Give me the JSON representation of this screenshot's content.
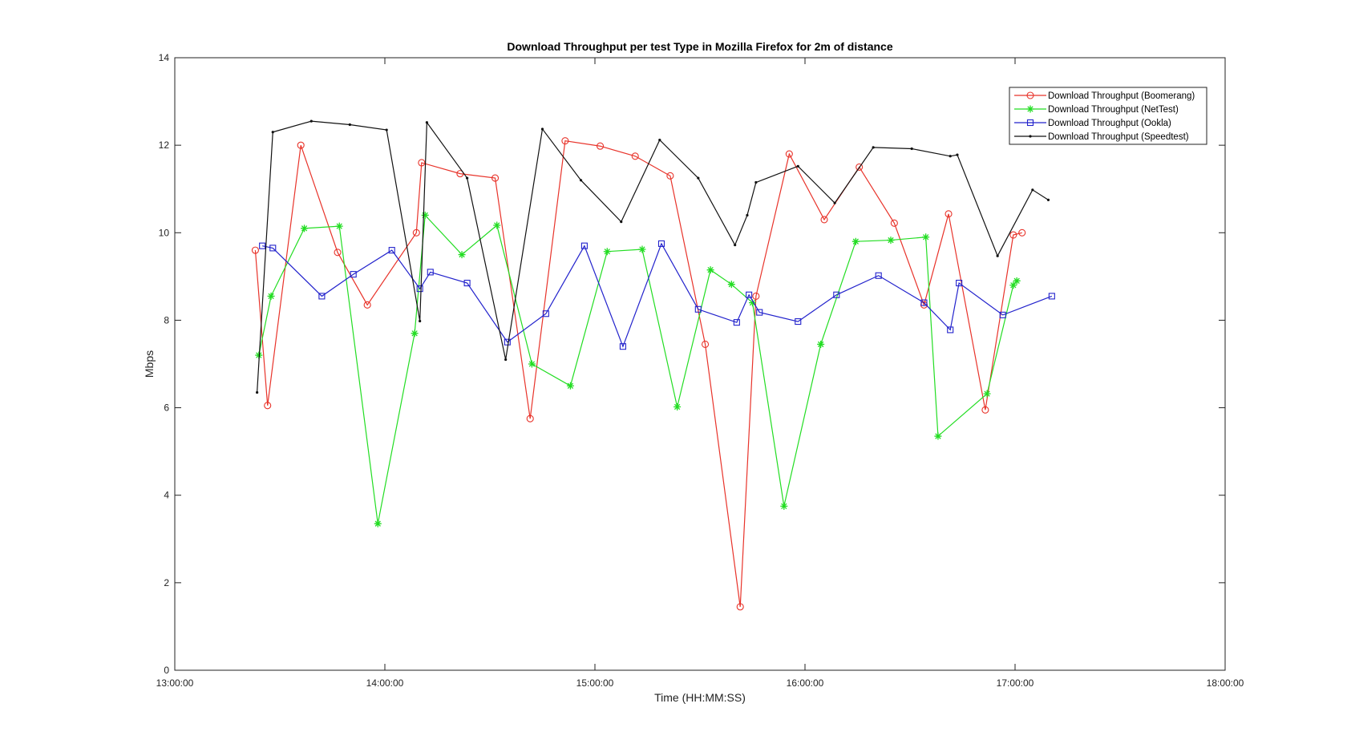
{
  "chart_data": {
    "type": "line",
    "title": "Download Throughput per test Type in Mozilla Firefox for 2m of distance",
    "xlabel": "Time (HH:MM:SS)",
    "ylabel": "Mbps",
    "xlim": [
      "13:00:00",
      "18:00:00"
    ],
    "ylim": [
      0,
      14
    ],
    "xticks": [
      "13:00:00",
      "14:00:00",
      "15:00:00",
      "16:00:00",
      "17:00:00",
      "18:00:00"
    ],
    "yticks": [
      "0",
      "2",
      "4",
      "6",
      "8",
      "10",
      "12",
      "14"
    ],
    "grid": false,
    "legend_position": "top-right",
    "series": [
      {
        "name": "Download Throughput (Boomerang)",
        "color": "#e8332a",
        "marker": "circle",
        "x": [
          "13:23:00",
          "13:26:30",
          "13:36:00",
          "13:46:30",
          "13:55:00",
          "14:09:00",
          "14:10:30",
          "14:21:30",
          "14:31:30",
          "14:41:30",
          "14:51:30",
          "15:01:30",
          "15:11:30",
          "15:21:30",
          "15:31:30",
          "15:41:30",
          "15:46:00",
          "15:55:30",
          "16:05:30",
          "16:15:30",
          "16:25:30",
          "16:34:00",
          "16:41:00",
          "16:51:30",
          "16:59:30",
          "17:02:00"
        ],
        "y": [
          9.6,
          6.05,
          12.0,
          9.55,
          8.35,
          10.0,
          11.6,
          11.35,
          11.25,
          5.75,
          12.1,
          11.98,
          11.75,
          11.3,
          7.45,
          1.45,
          8.55,
          11.8,
          10.3,
          11.5,
          10.22,
          8.35,
          10.43,
          5.95,
          9.95,
          10.0
        ]
      },
      {
        "name": "Download Throughput (NetTest)",
        "color": "#22dd22",
        "marker": "asterisk",
        "x": [
          "13:24:00",
          "13:27:30",
          "13:37:00",
          "13:47:00",
          "13:58:00",
          "14:08:30",
          "14:11:30",
          "14:22:00",
          "14:32:00",
          "14:42:00",
          "14:53:00",
          "15:03:30",
          "15:13:30",
          "15:23:30",
          "15:33:00",
          "15:39:00",
          "15:45:00",
          "15:54:00",
          "16:04:30",
          "16:14:30",
          "16:24:30",
          "16:34:30",
          "16:38:00",
          "16:52:00",
          "16:59:30",
          "17:00:30"
        ],
        "y": [
          7.2,
          8.55,
          10.1,
          10.15,
          3.35,
          7.7,
          10.4,
          9.5,
          10.17,
          7.0,
          6.5,
          9.57,
          9.62,
          6.02,
          9.15,
          8.82,
          8.4,
          3.75,
          7.45,
          9.8,
          9.83,
          9.9,
          5.35,
          6.32,
          8.8,
          8.9
        ]
      },
      {
        "name": "Download Throughput (Ookla)",
        "color": "#2222cc",
        "marker": "square",
        "x": [
          "13:25:00",
          "13:28:00",
          "13:42:00",
          "13:51:00",
          "14:02:00",
          "14:10:00",
          "14:13:00",
          "14:23:30",
          "14:35:00",
          "14:46:00",
          "14:57:00",
          "15:08:00",
          "15:19:00",
          "15:29:30",
          "15:40:30",
          "15:44:00",
          "15:47:00",
          "15:58:00",
          "16:09:00",
          "16:21:00",
          "16:34:00",
          "16:41:30",
          "16:44:00",
          "16:56:30",
          "17:10:30"
        ],
        "y": [
          9.7,
          9.65,
          8.55,
          9.05,
          9.6,
          8.72,
          9.1,
          8.85,
          7.5,
          8.15,
          9.7,
          7.4,
          9.75,
          8.25,
          7.95,
          8.58,
          8.18,
          7.97,
          8.58,
          9.02,
          8.4,
          7.78,
          8.85,
          8.12,
          8.55
        ]
      },
      {
        "name": "Download Throughput (Speedtest)",
        "color": "#111111",
        "marker": "dot",
        "x": [
          "13:23:30",
          "13:28:00",
          "13:39:00",
          "13:50:00",
          "14:00:30",
          "14:10:00",
          "14:12:00",
          "14:23:30",
          "14:34:30",
          "14:45:00",
          "14:56:00",
          "15:07:30",
          "15:18:30",
          "15:29:30",
          "15:40:00",
          "15:43:30",
          "15:46:00",
          "15:58:00",
          "16:08:30",
          "16:19:30",
          "16:30:30",
          "16:41:30",
          "16:43:30",
          "16:55:00",
          "17:05:00",
          "17:09:30"
        ],
        "y": [
          6.35,
          12.3,
          12.55,
          12.47,
          12.35,
          7.98,
          12.52,
          11.25,
          7.1,
          12.37,
          11.2,
          10.25,
          12.12,
          11.25,
          9.72,
          10.4,
          11.15,
          11.52,
          10.68,
          11.95,
          11.92,
          11.75,
          11.78,
          9.47,
          10.98,
          10.75
        ]
      }
    ]
  }
}
